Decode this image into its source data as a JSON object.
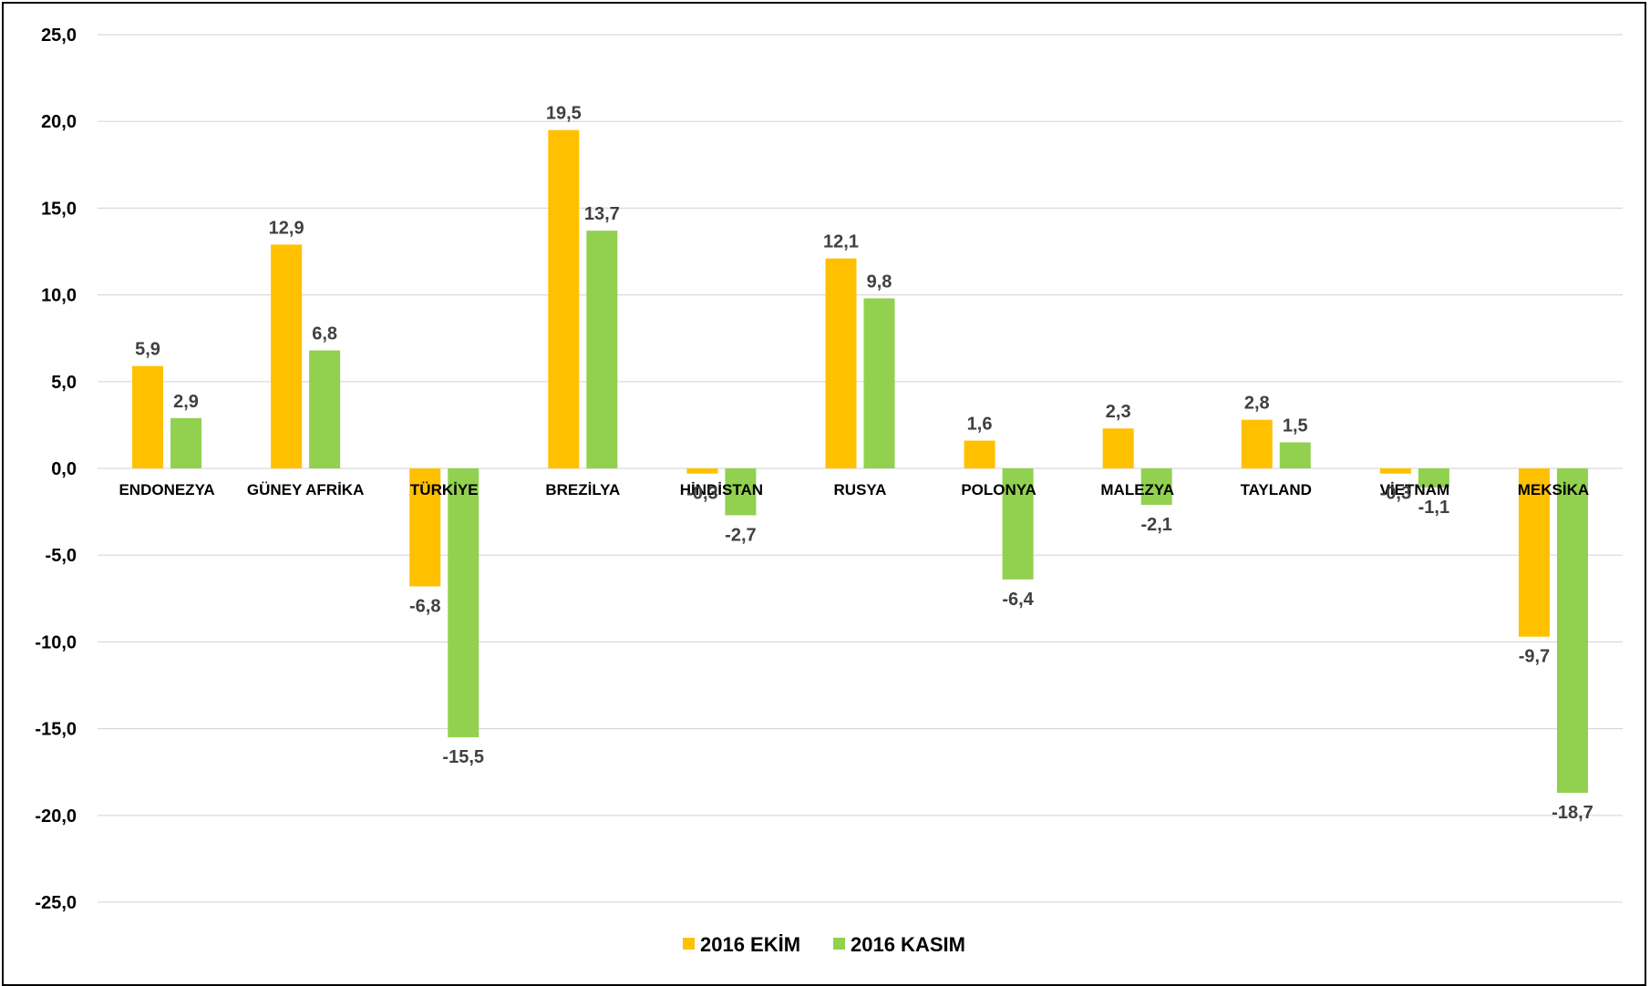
{
  "chart_data": {
    "type": "bar",
    "categories": [
      "ENDONEZYA",
      "GÜNEY AFRİKA",
      "TÜRKİYE",
      "BREZİLYA",
      "HİNDİSTAN",
      "RUSYA",
      "POLONYA",
      "MALEZYA",
      "TAYLAND",
      "VİETNAM",
      "MEKSİKA"
    ],
    "series": [
      {
        "name": "2016 EKİM",
        "color": "#FFC000",
        "values": [
          5.9,
          12.9,
          -6.8,
          19.5,
          -0.3,
          12.1,
          1.6,
          2.3,
          2.8,
          -0.3,
          -9.7
        ],
        "labels": [
          "5,9",
          "12,9",
          "-6,8",
          "19,5",
          "-0,3",
          "12,1",
          "1,6",
          "2,3",
          "2,8",
          "-0,3",
          "-9,7"
        ]
      },
      {
        "name": "2016 KASIM",
        "color": "#92D050",
        "values": [
          2.9,
          6.8,
          -15.5,
          13.7,
          -2.7,
          9.8,
          -6.4,
          -2.1,
          1.5,
          -1.1,
          -18.7
        ],
        "labels": [
          "2,9",
          "6,8",
          "-15,5",
          "13,7",
          "-2,7",
          "9,8",
          "-6,4",
          "-2,1",
          "1,5",
          "-1,1",
          "-18,7"
        ]
      }
    ],
    "yticks": [
      25,
      20,
      15,
      10,
      5,
      0,
      -5,
      -10,
      -15,
      -20,
      -25
    ],
    "ytick_labels": [
      "25,0",
      "20,0",
      "15,0",
      "10,0",
      "5,0",
      "0,0",
      "-5,0",
      "-10,0",
      "-15,0",
      "-20,0",
      "-25,0"
    ],
    "ylim": [
      -25,
      25
    ],
    "title": "",
    "xlabel": "",
    "ylabel": "",
    "grid": true,
    "legend": "bottom-center",
    "gridline_color": "#d9d9d9"
  }
}
